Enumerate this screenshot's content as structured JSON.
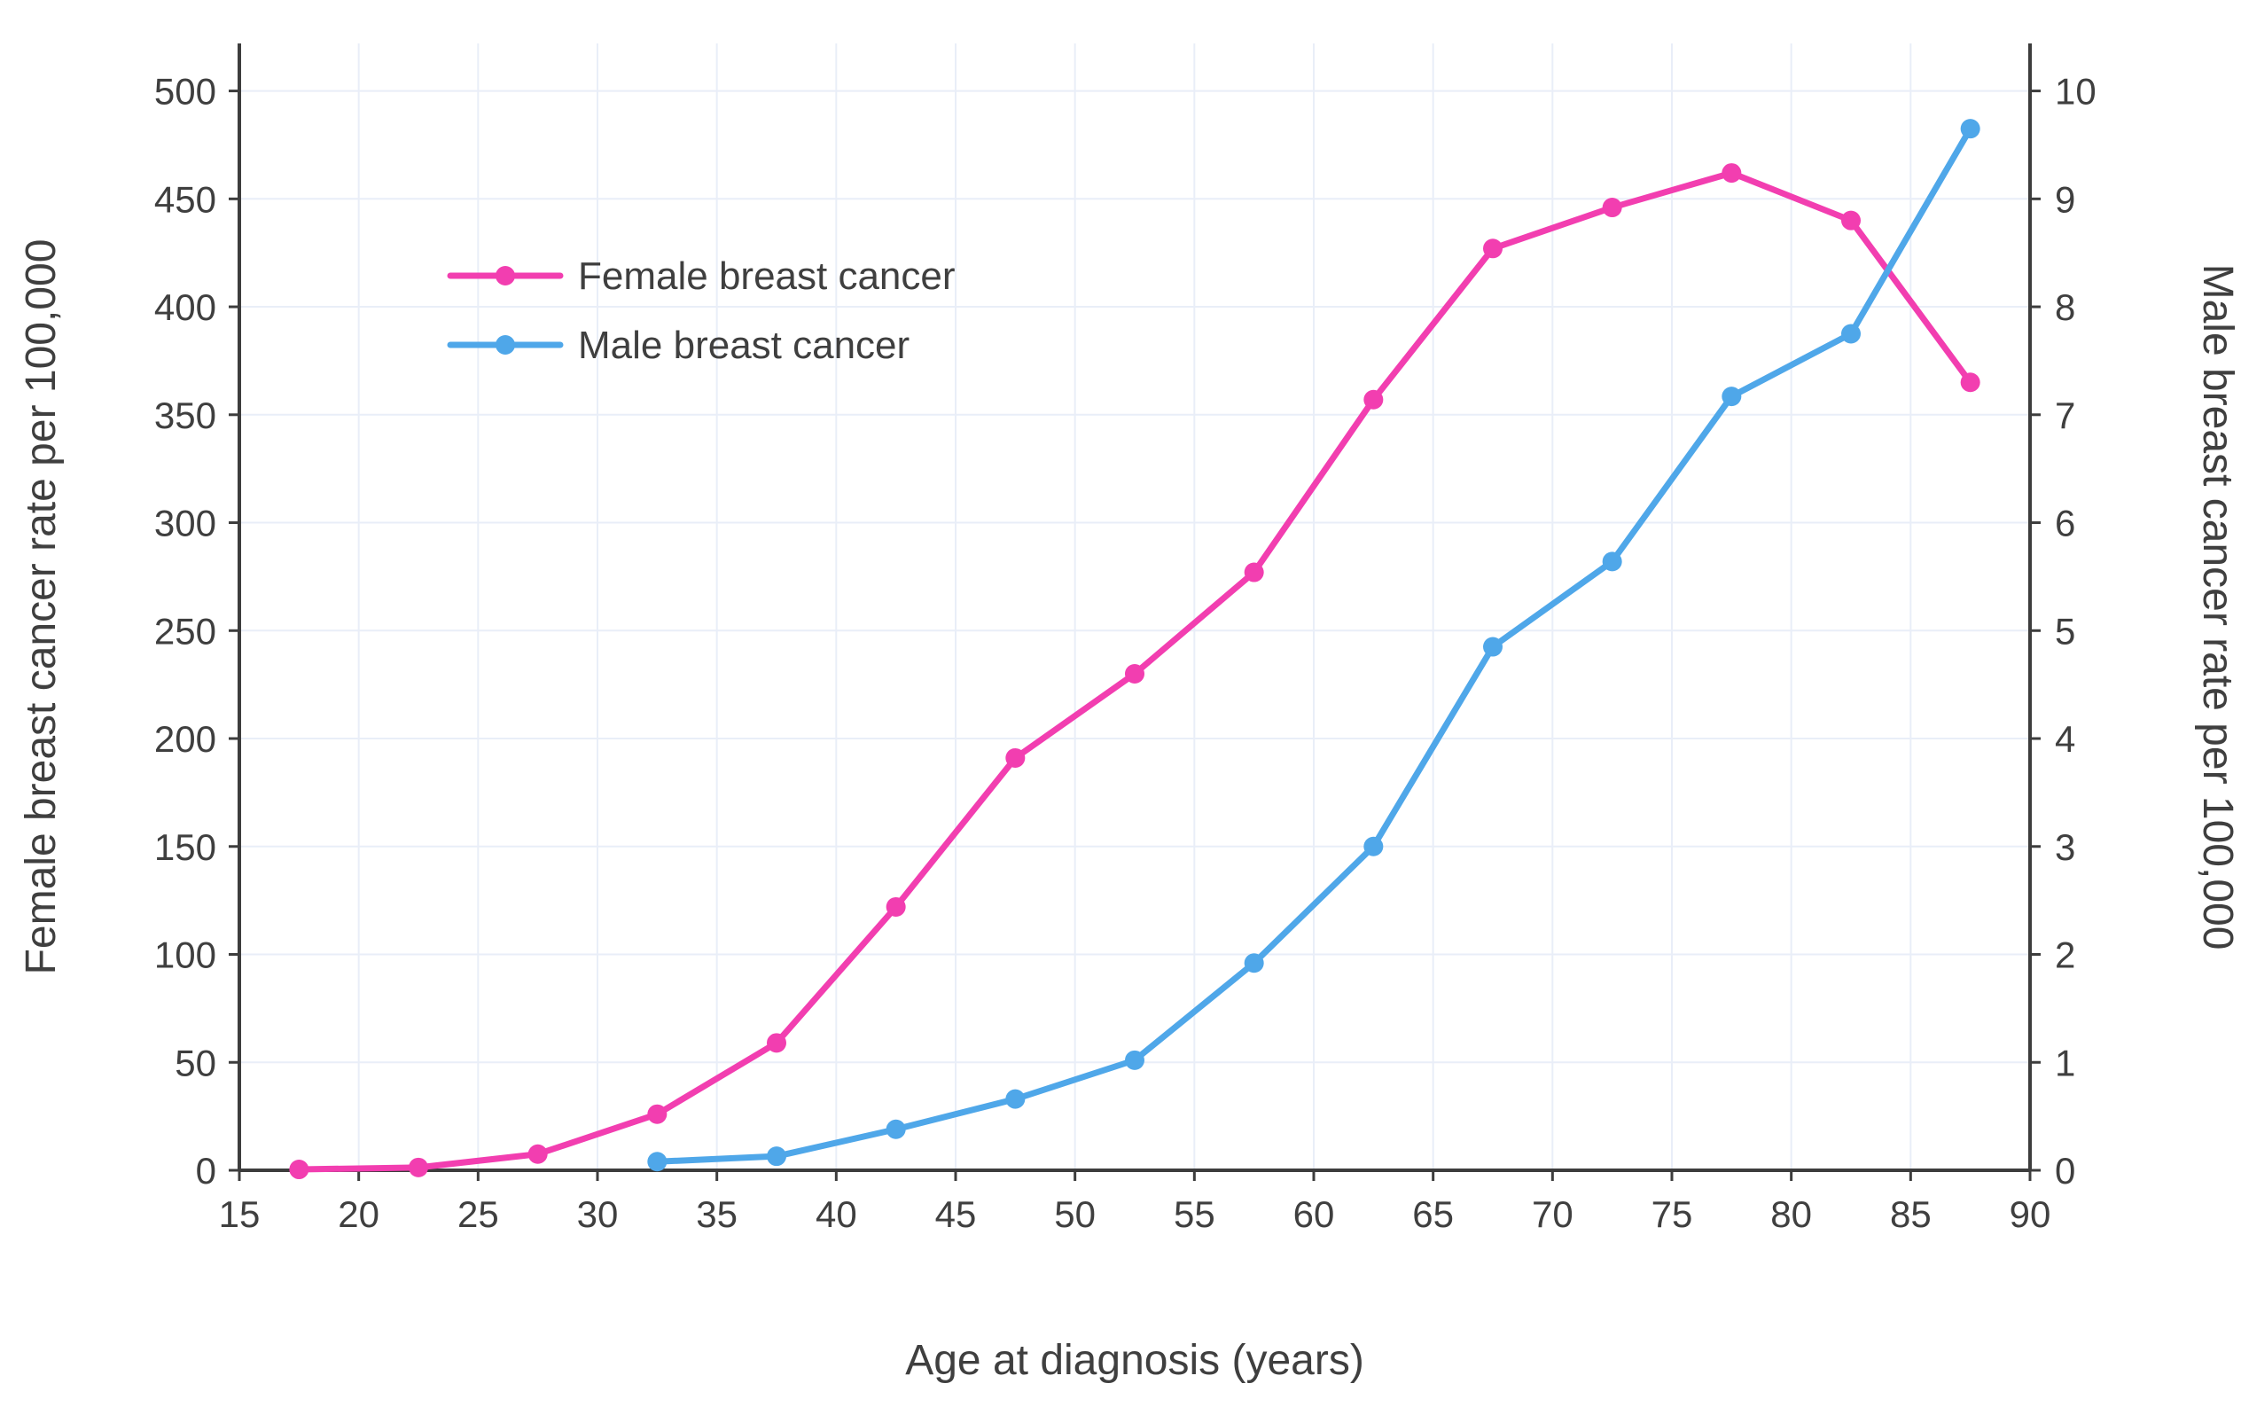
{
  "chart_data": {
    "type": "line",
    "title": "",
    "xlabel": "Age at diagnosis (years)",
    "ylabel_left": "Female breast cancer rate per 100,000",
    "ylabel_right": "Male breast cancer rate per 100,000",
    "xlim": [
      15,
      90
    ],
    "ylim_left": [
      0,
      522
    ],
    "ylim_right": [
      0,
      10.44
    ],
    "x_ticks": [
      15,
      20,
      25,
      30,
      35,
      40,
      45,
      50,
      55,
      60,
      65,
      70,
      75,
      80,
      85,
      90
    ],
    "y_left_ticks": [
      0,
      50,
      100,
      150,
      200,
      250,
      300,
      350,
      400,
      450,
      500
    ],
    "y_right_ticks": [
      0,
      1,
      2,
      3,
      4,
      5,
      6,
      7,
      8,
      9,
      10
    ],
    "grid": true,
    "legend_position": "top-left-inside",
    "colors": {
      "female": "#f23eb0",
      "male": "#4fa7e9",
      "grid": "#e9eef8",
      "axis": "#3d3d3d",
      "text": "#3f3f3f"
    },
    "series": [
      {
        "name": "Female breast cancer",
        "axis": "left",
        "color_key": "female",
        "x": [
          17.5,
          22.5,
          27.5,
          32.5,
          37.5,
          42.5,
          47.5,
          52.5,
          57.5,
          62.5,
          67.5,
          72.5,
          77.5,
          82.5,
          87.5
        ],
        "y": [
          0.4,
          1.3,
          7.5,
          26,
          59,
          122,
          191,
          230,
          277,
          357,
          427,
          446,
          462,
          440,
          365
        ]
      },
      {
        "name": "Male breast cancer",
        "axis": "right",
        "color_key": "male",
        "x": [
          32.5,
          37.5,
          42.5,
          47.5,
          52.5,
          57.5,
          62.5,
          67.5,
          72.5,
          77.5,
          82.5,
          87.5
        ],
        "y": [
          0.08,
          0.13,
          0.38,
          0.66,
          1.02,
          1.92,
          3.0,
          4.85,
          5.64,
          7.17,
          7.75,
          9.65
        ]
      }
    ]
  }
}
